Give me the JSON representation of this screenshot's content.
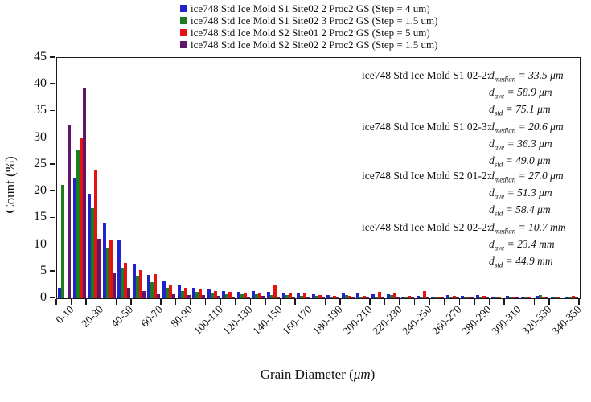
{
  "legend": {
    "items": [
      {
        "label": "ice748 Std Ice Mold S1 Site02 2 Proc2 GS (Step = 4 um)",
        "color": "#2222CC"
      },
      {
        "label": "ice748 Std Ice Mold S1 Site02 3 Proc2 GS (Step = 1.5 um)",
        "color": "#1E7B1E"
      },
      {
        "label": "ice748 Std Ice Mold S2 Site01 2 Proc2 GS (Step = 5 um)",
        "color": "#E81111"
      },
      {
        "label": "ice748 Std Ice Mold S2 Site02 2 Proc2 GS (Step = 1.5 um)",
        "color": "#5E1666"
      }
    ]
  },
  "chart_data": {
    "type": "bar",
    "title": "",
    "xlabel_prefix": "Grain Diameter (",
    "xlabel_unit": "μm",
    "xlabel_suffix": ")",
    "ylabel": "Count (%)",
    "ylim": [
      0,
      45
    ],
    "yticks": [
      0,
      5,
      10,
      15,
      20,
      25,
      30,
      35,
      40,
      45
    ],
    "grid": false,
    "legend_position": "top",
    "categories": [
      "0-10",
      "10-20",
      "20-30",
      "30-40",
      "40-50",
      "50-60",
      "60-70",
      "70-80",
      "80-90",
      "90-100",
      "100-110",
      "110-120",
      "120-130",
      "130-140",
      "140-150",
      "150-160",
      "160-170",
      "170-180",
      "180-190",
      "190-200",
      "200-210",
      "210-220",
      "220-230",
      "230-240",
      "240-250",
      "250-260",
      "260-270",
      "270-280",
      "280-290",
      "290-300",
      "300-310",
      "310-320",
      "320-330",
      "330-340",
      "340-350"
    ],
    "xtick_labels": [
      "0-10",
      "20-30",
      "40-50",
      "60-70",
      "80-90",
      "100-110",
      "120-130",
      "140-150",
      "160-170",
      "180-190",
      "200-210",
      "220-230",
      "240-250",
      "260-270",
      "280-290",
      "300-310",
      "320-330",
      "340-350"
    ],
    "series": [
      {
        "name": "ice748 Std Ice Mold S1 Site02 2 Proc2 GS (Step = 4 um)",
        "color": "#2222CC",
        "values": [
          1.9,
          22.6,
          19.6,
          14.1,
          10.8,
          6.5,
          4.3,
          3.3,
          2.4,
          2.0,
          1.65,
          1.4,
          1.2,
          1.4,
          1.15,
          1.0,
          0.9,
          0.7,
          0.55,
          0.9,
          0.9,
          0.7,
          0.8,
          0.3,
          0.45,
          0.35,
          0.55,
          0.4,
          0.55,
          0.35,
          0.5,
          0.3,
          0.4,
          0.25,
          0.35
        ]
      },
      {
        "name": "ice748 Std Ice Mold S1 Site02 3 Proc2 GS (Step = 1.5 um)",
        "color": "#1E7B1E",
        "values": [
          21.2,
          27.8,
          16.8,
          9.3,
          5.7,
          4.2,
          3.0,
          1.9,
          1.4,
          1.15,
          0.9,
          0.75,
          0.7,
          0.75,
          0.65,
          0.55,
          0.5,
          0.4,
          0.3,
          0.6,
          0.3,
          0.25,
          0.65,
          0.2,
          0.25,
          0.2,
          0.3,
          0.2,
          0.3,
          0.15,
          0.2,
          0.15,
          0.55,
          0.1,
          0.15
        ]
      },
      {
        "name": "ice748 Std Ice Mold S2 Site01 2 Proc2 GS (Step = 5 um)",
        "color": "#E81111",
        "values": [
          0,
          30.0,
          23.9,
          11.0,
          6.6,
          5.2,
          4.5,
          2.6,
          1.9,
          1.75,
          1.4,
          1.2,
          1.1,
          0.9,
          2.6,
          0.95,
          0.85,
          0.6,
          0.45,
          0.5,
          0.4,
          1.2,
          0.9,
          0.5,
          1.4,
          0.35,
          0.45,
          0.3,
          0.4,
          0.25,
          0.3,
          0.2,
          0.3,
          0.3,
          0.45
        ]
      },
      {
        "name": "ice748 Std Ice Mold S2 Site02 2 Proc2 GS (Step = 1.5 um)",
        "color": "#5E1666",
        "values": [
          32.5,
          39.5,
          11.1,
          4.8,
          1.9,
          1.35,
          0.8,
          0.75,
          0.65,
          0.55,
          0.4,
          0.35,
          0.3,
          0.4,
          0.3,
          0.25,
          0.2,
          0.15,
          0.1,
          0.3,
          0.15,
          0.1,
          0.35,
          0.1,
          0.1,
          0.1,
          0.15,
          0.1,
          0.15,
          0,
          0.1,
          0,
          0.1,
          0,
          0.1
        ]
      }
    ],
    "annotations": [
      {
        "label": "ice748 Std Ice Mold S1 02-2:",
        "stats": [
          {
            "sub": "median",
            "value": "33.5 μm"
          },
          {
            "sub": "ave",
            "value": "58.9 μm"
          },
          {
            "sub": "std",
            "value": "75.1 μm"
          }
        ]
      },
      {
        "label": "ice748 Std Ice Mold S1 02-3:",
        "stats": [
          {
            "sub": "median",
            "value": "20.6 μm"
          },
          {
            "sub": "ave",
            "value": "36.3 μm"
          },
          {
            "sub": "std",
            "value": "49.0 μm"
          }
        ]
      },
      {
        "label": "ice748 Std Ice Mold S2 01-2:",
        "stats": [
          {
            "sub": "median",
            "value": "27.0 μm"
          },
          {
            "sub": "ave",
            "value": "51.3 μm"
          },
          {
            "sub": "std",
            "value": "58.4 μm"
          }
        ]
      },
      {
        "label": "ice748 Std Ice Mold S2 02-2:",
        "stats": [
          {
            "sub": "median",
            "value": "10.7 mm"
          },
          {
            "sub": "ave",
            "value": "23.4 mm"
          },
          {
            "sub": "std",
            "value": "44.9 mm"
          }
        ]
      }
    ]
  }
}
